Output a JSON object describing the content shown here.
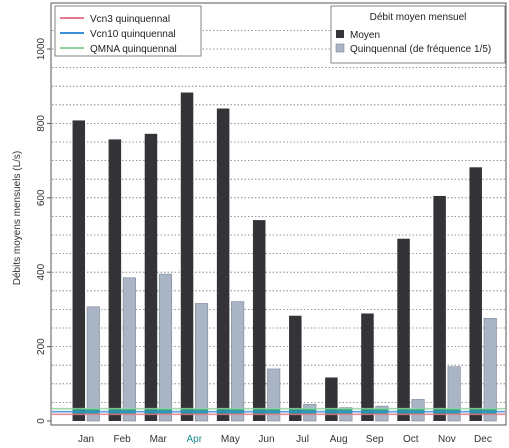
{
  "chart_data": {
    "type": "bar",
    "categories": [
      "Jan",
      "Feb",
      "Mar",
      "Apr",
      "May",
      "Jun",
      "Jul",
      "Aug",
      "Sep",
      "Oct",
      "Nov",
      "Dec"
    ],
    "series": [
      {
        "name": "Moyen",
        "values": [
          808,
          757,
          772,
          883,
          840,
          540,
          283,
          117,
          289,
          490,
          605,
          682
        ]
      },
      {
        "name": "Quinquennal (de fréquence 1/5)",
        "values": [
          307,
          385,
          395,
          316,
          321,
          140,
          45,
          36,
          40,
          58,
          146,
          276
        ]
      }
    ],
    "reference_lines": [
      {
        "name": "Vcn3 quinquennal",
        "value": 18
      },
      {
        "name": "Vcn10 quinquennal",
        "value": 25
      },
      {
        "name": "QMNA quinquennal",
        "value": 33
      }
    ],
    "title": "",
    "xlabel": "",
    "ylabel": "Débits moyens mensuels (L/s)",
    "yticks": [
      0,
      200,
      400,
      600,
      800,
      1000
    ],
    "ylim": [
      0,
      1080
    ],
    "grid": true,
    "legend_bars_title": "Débit moyen mensuel",
    "legend_lines_position": "top-left",
    "legend_bars_position": "top-right",
    "colors": {
      "Moyen": "#333338",
      "Quinquennal": "#a9b4c4",
      "Vcn3 quinquennal": "#e07a8c",
      "Vcn10 quinquennal": "#3a8fd6",
      "QMNA quinquennal": "#8fd49a",
      "teal_band": "#1a9c8c"
    }
  }
}
